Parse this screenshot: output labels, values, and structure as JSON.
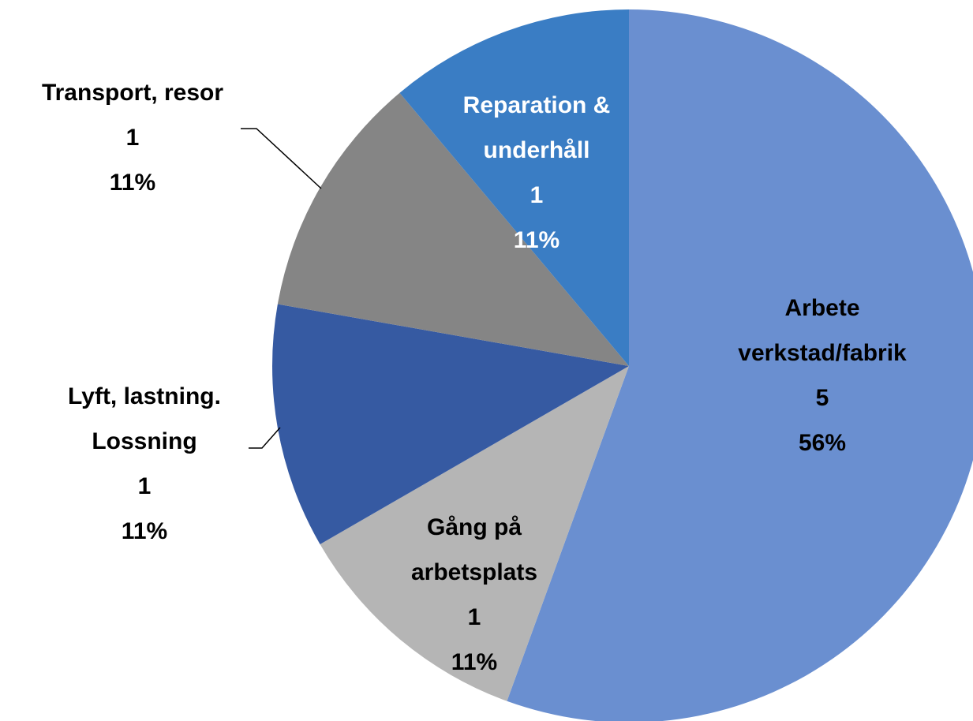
{
  "chart_data": {
    "type": "pie",
    "categories": [
      "Arbete\nverkstad/fabrik",
      "Gång på\narbetsplats",
      "Lyft, lastning.\nLossning",
      "Transport, resor",
      "Reparation &\nunderhåll"
    ],
    "values": [
      5,
      1,
      1,
      1,
      1
    ],
    "percent_labels": [
      "56%",
      "11%",
      "11%",
      "11%",
      "11%"
    ],
    "colors": [
      "#6a8fd0",
      "#b5b5b5",
      "#365aa2",
      "#858585",
      "#3a7dc4"
    ],
    "label_colors": [
      "#000000",
      "#000000",
      "#000000",
      "#000000",
      "#ffffff"
    ]
  }
}
